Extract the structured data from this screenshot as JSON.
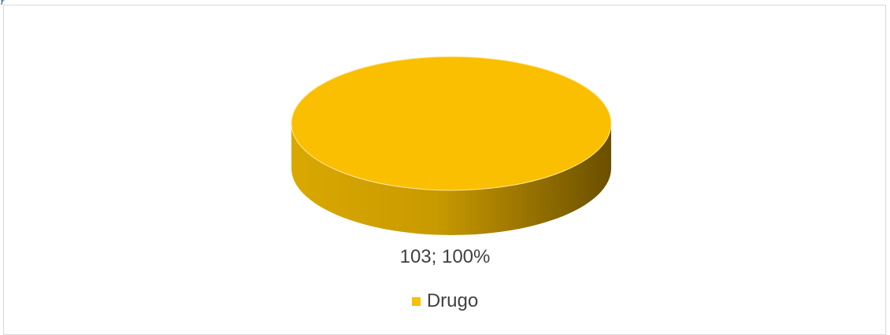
{
  "chart_data": {
    "type": "pie",
    "style": "3d",
    "categories": [
      "Drugo"
    ],
    "values": [
      103
    ],
    "percentages": [
      100
    ],
    "data_labels": [
      "103; 100%"
    ],
    "legend": {
      "entries": [
        "Drugo"
      ],
      "placement": "bottom"
    },
    "colors": {
      "slice": "#f9bf00",
      "side_dark": "#6b4f00",
      "side_mid": "#c99a00",
      "side_light": "#d9a800",
      "frame": "#d9d9d9",
      "text": "#404040"
    }
  }
}
